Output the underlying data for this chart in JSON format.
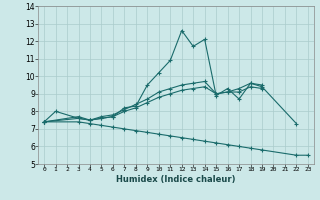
{
  "xlabel": "Humidex (Indice chaleur)",
  "ylabel": "",
  "xlim": [
    -0.5,
    23.5
  ],
  "ylim": [
    5,
    14
  ],
  "xticks": [
    0,
    1,
    2,
    3,
    4,
    5,
    6,
    7,
    8,
    9,
    10,
    11,
    12,
    13,
    14,
    15,
    16,
    17,
    18,
    19,
    20,
    21,
    22,
    23
  ],
  "yticks": [
    5,
    6,
    7,
    8,
    9,
    10,
    11,
    12,
    13,
    14
  ],
  "background_color": "#cce8e8",
  "grid_color": "#aacccc",
  "line_color": "#1a6b6b",
  "series": [
    {
      "x": [
        0,
        1,
        3,
        4,
        5,
        6,
        7,
        8,
        9,
        10,
        11,
        12,
        13,
        14,
        15,
        16,
        17,
        18,
        19,
        22
      ],
      "y": [
        7.4,
        8.0,
        7.6,
        7.5,
        7.6,
        7.7,
        8.2,
        8.3,
        9.5,
        10.2,
        10.9,
        12.6,
        11.7,
        12.1,
        8.9,
        9.3,
        8.7,
        9.6,
        9.4,
        7.3
      ]
    },
    {
      "x": [
        0,
        3,
        4,
        5,
        6,
        7,
        8,
        9,
        10,
        11,
        12,
        13,
        14,
        15,
        16,
        17,
        18,
        19
      ],
      "y": [
        7.4,
        7.6,
        7.5,
        7.7,
        7.8,
        8.1,
        8.4,
        8.7,
        9.1,
        9.3,
        9.5,
        9.6,
        9.7,
        9.0,
        9.1,
        9.3,
        9.6,
        9.5
      ]
    },
    {
      "x": [
        0,
        3,
        4,
        5,
        6,
        7,
        8,
        9,
        10,
        11,
        12,
        13,
        14,
        15,
        16,
        17,
        18,
        19
      ],
      "y": [
        7.4,
        7.7,
        7.5,
        7.6,
        7.7,
        8.0,
        8.2,
        8.5,
        8.8,
        9.0,
        9.2,
        9.3,
        9.4,
        9.0,
        9.1,
        9.1,
        9.4,
        9.3
      ]
    },
    {
      "x": [
        0,
        3,
        4,
        5,
        6,
        7,
        8,
        9,
        10,
        11,
        12,
        13,
        14,
        15,
        16,
        17,
        18,
        19,
        22,
        23
      ],
      "y": [
        7.4,
        7.4,
        7.3,
        7.2,
        7.1,
        7.0,
        6.9,
        6.8,
        6.7,
        6.6,
        6.5,
        6.4,
        6.3,
        6.2,
        6.1,
        6.0,
        5.9,
        5.8,
        5.5,
        5.5
      ]
    }
  ]
}
